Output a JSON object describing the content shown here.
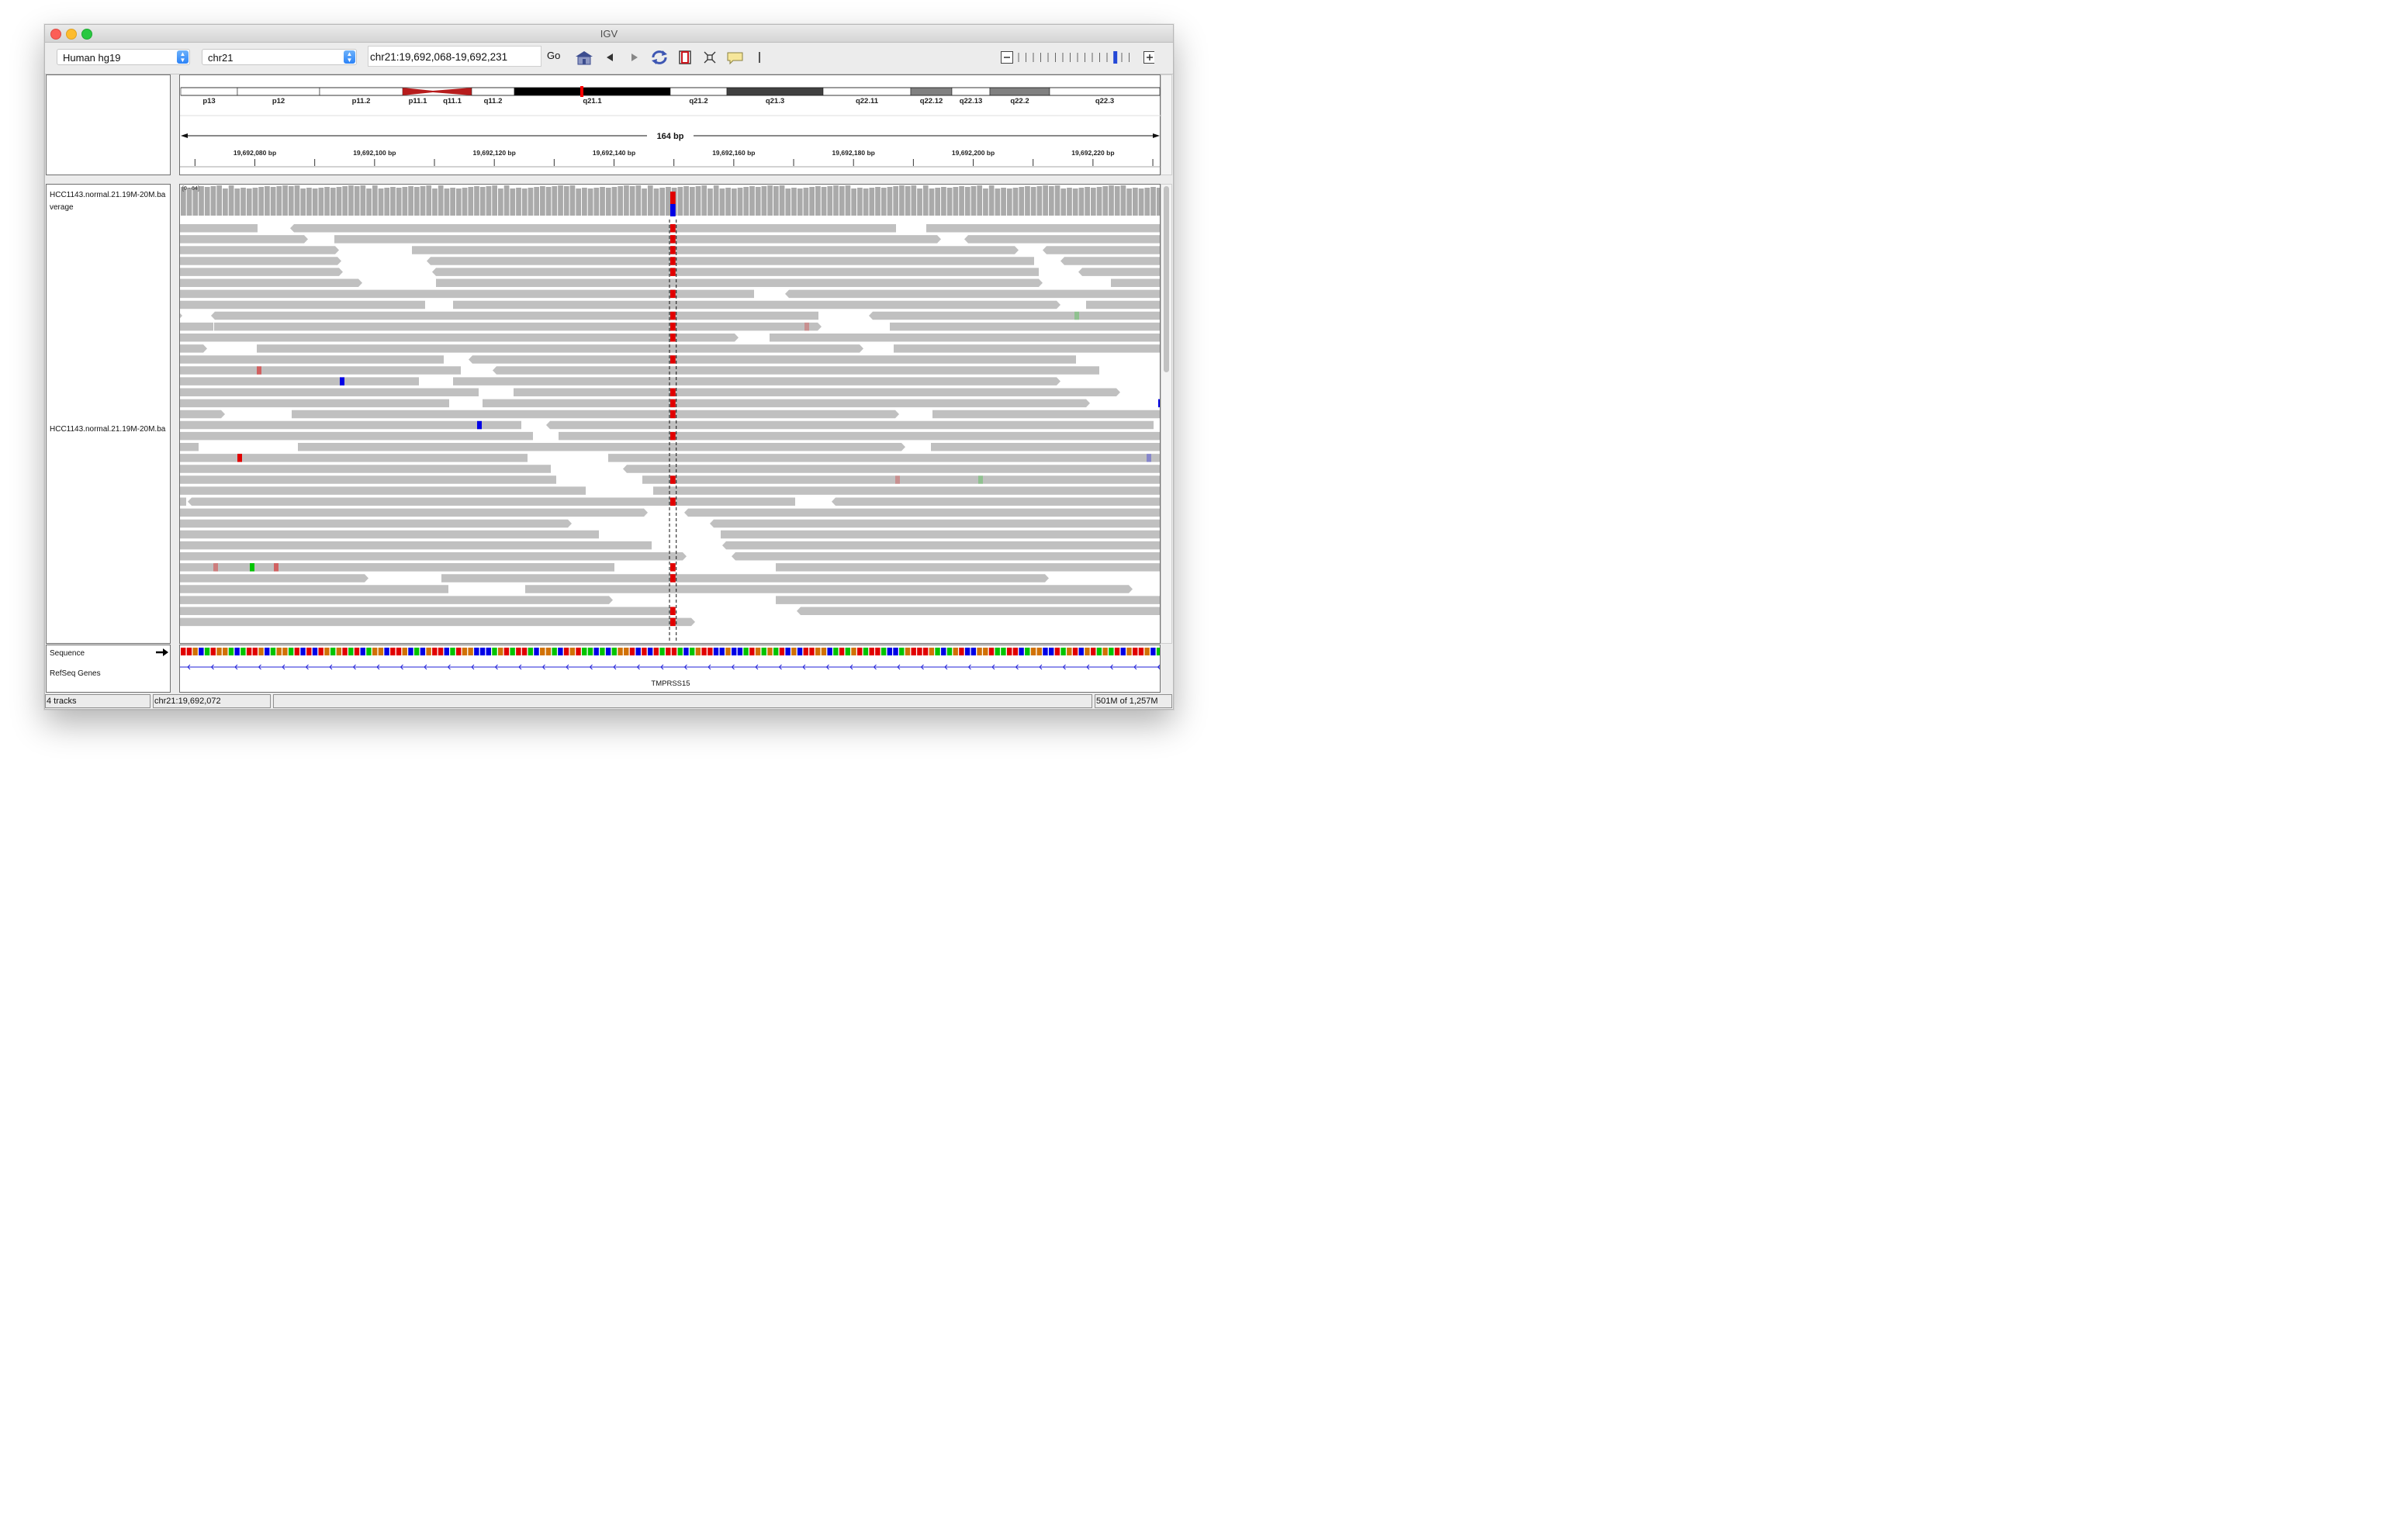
{
  "window": {
    "title": "IGV"
  },
  "toolbar": {
    "genome": "Human hg19",
    "chromosome": "chr21",
    "locus": "chr21:19,692,068-19,692,231",
    "go_label": "Go",
    "zoom_ticks": 16,
    "zoom_level_fraction": 0.875
  },
  "ideogram": {
    "bands": [
      "p13",
      "p12",
      "p11.2",
      "p11.1",
      "q11.1",
      "q11.2",
      "q21.1",
      "q21.2",
      "q21.3",
      "q22.11",
      "q22.12",
      "q22.13",
      "q22.2",
      "q22.3"
    ]
  },
  "ruler": {
    "span_label": "164 bp",
    "ticks": [
      "19,692,080 bp",
      "19,692,100 bp",
      "19,692,120 bp",
      "19,692,140 bp",
      "19,692,160 bp",
      "19,692,180 bp",
      "19,692,200 bp",
      "19,692,220 bp"
    ]
  },
  "tracks": {
    "coverage_name": "HCC1143.normal.21.19M-20M.ba\nverage",
    "coverage_name_line1": "HCC1143.normal.21.19M-20M.ba",
    "coverage_name_line2": "verage",
    "coverage_range": "[0 - 64]",
    "alignment_name": "HCC1143.normal.21.19M-20M.ba",
    "sequence_name": "Sequence",
    "refseq_name": "RefSeq Genes",
    "gene": "TMPRSS15"
  },
  "status": {
    "tracks": "4 tracks",
    "position": "chr21:19,692,072",
    "message": "",
    "memory": "501M of 1,257M"
  },
  "colors": {
    "read": "#c0c0c0",
    "read_stroke": "#b2b2b2",
    "mismatch_t": "#e10000",
    "mismatch_c": "#0000e6",
    "mismatch_g": "#d17105",
    "mismatch_a": "#00c400",
    "coverage": "#aaaaaa",
    "gene_line": "#1f1fd9"
  }
}
